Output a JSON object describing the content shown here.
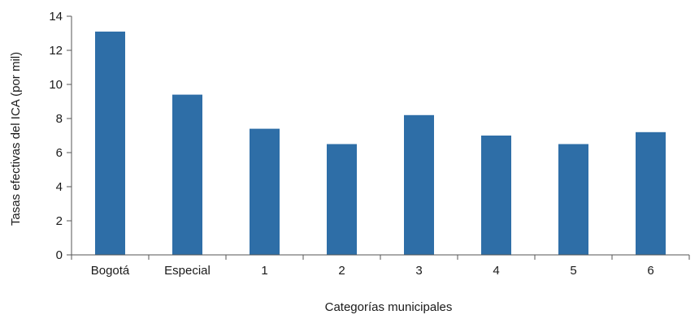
{
  "chart_data": {
    "type": "bar",
    "categories": [
      "Bogotá",
      "Especial",
      "1",
      "2",
      "3",
      "4",
      "5",
      "6"
    ],
    "values": [
      13.1,
      9.4,
      7.4,
      6.5,
      8.2,
      7.0,
      6.5,
      7.2
    ],
    "xlabel": "Categorías municipales",
    "ylabel": "Tasas efectivas del ICA (por mil)",
    "ylim": [
      0,
      14
    ],
    "yticks": [
      0,
      2,
      4,
      6,
      8,
      10,
      12,
      14
    ],
    "grid": false,
    "bar_color": "#2e6ea7"
  }
}
